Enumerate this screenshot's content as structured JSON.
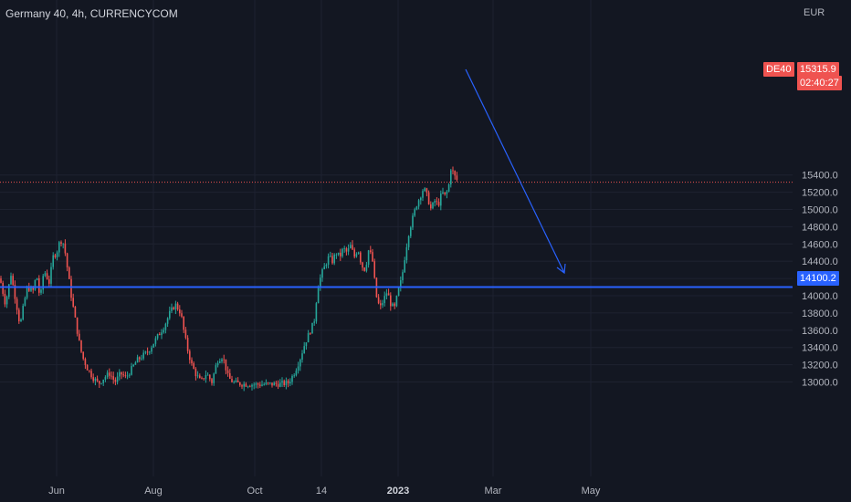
{
  "header": {
    "title": "Germany 40, 4h, CURRENCYCOM",
    "currency": "EUR"
  },
  "price": {
    "symbol": "DE40",
    "last": "15315.9",
    "last_value": 15315.9,
    "countdown": "02:40:27"
  },
  "level": {
    "label": "14100.2",
    "value": 14100.2
  },
  "colors": {
    "background": "#131722",
    "grid": "#1e2230",
    "up": "#26a69a",
    "down": "#ef5350",
    "level_line": "#2962ff",
    "arrow": "#2962ff",
    "price_line": "#ef5350",
    "axis_text": "#b2b5be"
  },
  "chart_data": {
    "type": "candlestick",
    "title": "Germany 40, 4h, CURRENCYCOM",
    "ylabel": "EUR",
    "ylim": [
      12940,
      15560
    ],
    "y_ticks": [
      "13000.0",
      "13200.0",
      "13400.0",
      "13600.0",
      "13800.0",
      "14000.0",
      "14200.0",
      "14400.0",
      "14600.0",
      "14800.0",
      "15000.0",
      "15200.0",
      "15400.0"
    ],
    "x_ticks": [
      "Jun",
      "Aug",
      "Oct",
      "14",
      "2023",
      "Mar",
      "May"
    ],
    "date_range": [
      "2022-05",
      "2023-02"
    ],
    "path_shape": [
      [
        0,
        14200
      ],
      [
        6,
        13900
      ],
      [
        12,
        14250
      ],
      [
        18,
        13900
      ],
      [
        22,
        13650
      ],
      [
        26,
        13900
      ],
      [
        30,
        14100
      ],
      [
        36,
        14050
      ],
      [
        40,
        14250
      ],
      [
        44,
        13950
      ],
      [
        48,
        14300
      ],
      [
        54,
        14150
      ],
      [
        58,
        14450
      ],
      [
        62,
        14500
      ],
      [
        66,
        14650
      ],
      [
        70,
        14600
      ],
      [
        74,
        14300
      ],
      [
        78,
        14000
      ],
      [
        82,
        13750
      ],
      [
        86,
        13500
      ],
      [
        90,
        13300
      ],
      [
        96,
        13150
      ],
      [
        102,
        13050
      ],
      [
        108,
        12980
      ],
      [
        114,
        13050
      ],
      [
        120,
        13100
      ],
      [
        126,
        13000
      ],
      [
        132,
        13100
      ],
      [
        138,
        13050
      ],
      [
        144,
        13150
      ],
      [
        150,
        13250
      ],
      [
        156,
        13300
      ],
      [
        162,
        13350
      ],
      [
        168,
        13450
      ],
      [
        174,
        13550
      ],
      [
        180,
        13650
      ],
      [
        186,
        13800
      ],
      [
        192,
        13900
      ],
      [
        198,
        13800
      ],
      [
        202,
        13550
      ],
      [
        206,
        13350
      ],
      [
        210,
        13200
      ],
      [
        214,
        13100
      ],
      [
        220,
        13000
      ],
      [
        226,
        13100
      ],
      [
        232,
        13000
      ],
      [
        238,
        13250
      ],
      [
        244,
        13300
      ],
      [
        250,
        13050
      ],
      [
        256,
        12990
      ],
      [
        262,
        12980
      ],
      [
        268,
        12975
      ],
      [
        280,
        12970
      ],
      [
        300,
        12975
      ],
      [
        310,
        12980
      ],
      [
        316,
        12990
      ],
      [
        322,
        13100
      ],
      [
        328,
        13250
      ],
      [
        334,
        13450
      ],
      [
        340,
        13600
      ],
      [
        344,
        13700
      ],
      [
        348,
        14100
      ],
      [
        352,
        14250
      ],
      [
        356,
        14350
      ],
      [
        360,
        14450
      ],
      [
        364,
        14400
      ],
      [
        368,
        14500
      ],
      [
        372,
        14450
      ],
      [
        376,
        14550
      ],
      [
        380,
        14500
      ],
      [
        384,
        14580
      ],
      [
        388,
        14450
      ],
      [
        392,
        14550
      ],
      [
        396,
        14350
      ],
      [
        400,
        14300
      ],
      [
        404,
        14550
      ],
      [
        408,
        14400
      ],
      [
        412,
        14000
      ],
      [
        416,
        13850
      ],
      [
        420,
        13950
      ],
      [
        424,
        14050
      ],
      [
        428,
        13900
      ],
      [
        432,
        13850
      ],
      [
        436,
        14050
      ],
      [
        440,
        14200
      ],
      [
        444,
        14500
      ],
      [
        448,
        14750
      ],
      [
        452,
        14900
      ],
      [
        456,
        15050
      ],
      [
        460,
        15150
      ],
      [
        464,
        15250
      ],
      [
        468,
        15150
      ],
      [
        472,
        15000
      ],
      [
        476,
        15100
      ],
      [
        480,
        15050
      ],
      [
        484,
        15200
      ],
      [
        488,
        15150
      ],
      [
        492,
        15300
      ],
      [
        494,
        15500
      ],
      [
        497,
        15400
      ],
      [
        502,
        15316
      ]
    ],
    "annotations": [
      {
        "type": "horizontal_line",
        "value": 14100.2
      },
      {
        "type": "arrow",
        "from": [
          "2023-02",
          15316
        ],
        "to": [
          "2023-04",
          14100
        ]
      }
    ]
  }
}
